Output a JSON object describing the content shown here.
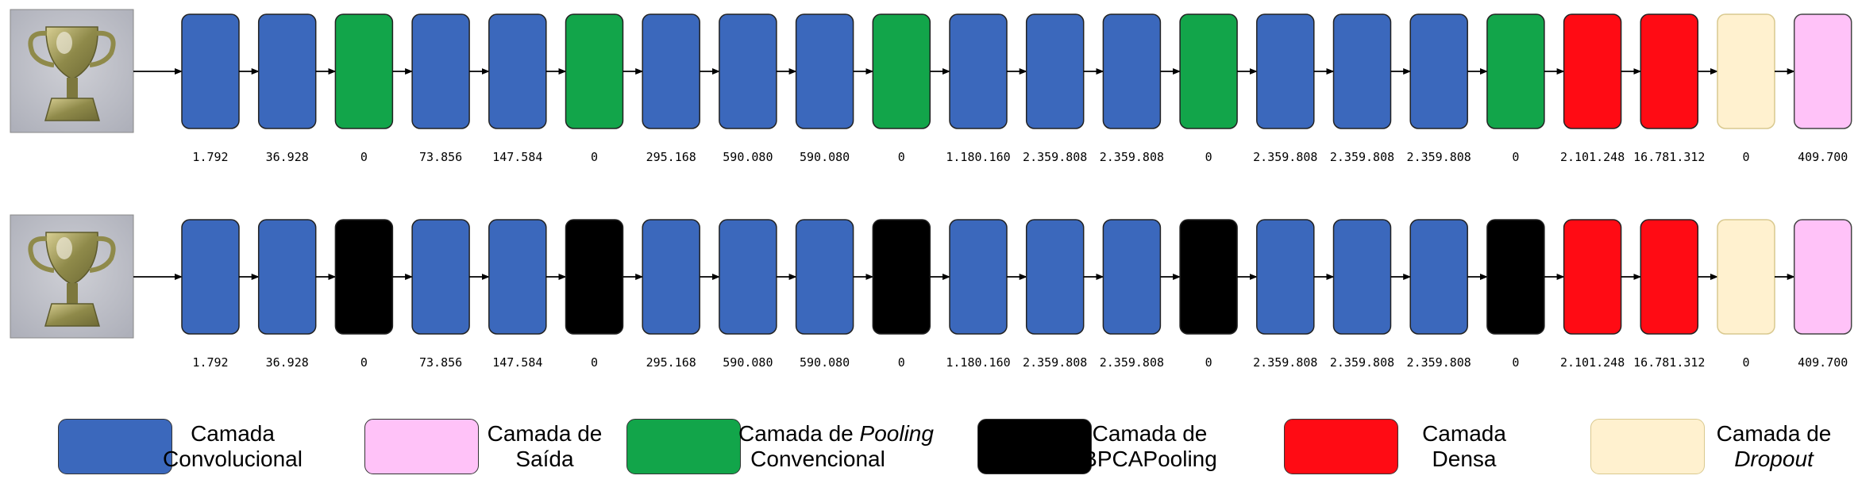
{
  "colors": {
    "conv": "#3B68BC",
    "pool_conv": "#12A54A",
    "pool_bpca": "#000000",
    "dense": "#FF0B14",
    "dropout": "#FFF1CF",
    "output": "#FFC2F8"
  },
  "rows": [
    {
      "image_icon": "trophy-icon",
      "layers": [
        "conv",
        "conv",
        "pool_conv",
        "conv",
        "conv",
        "pool_conv",
        "conv",
        "conv",
        "conv",
        "pool_conv",
        "conv",
        "conv",
        "conv",
        "pool_conv",
        "conv",
        "conv",
        "conv",
        "pool_conv",
        "dense",
        "dense",
        "dropout",
        "output"
      ],
      "params": [
        "1.792",
        "36.928",
        "0",
        "73.856",
        "147.584",
        "0",
        "295.168",
        "590.080",
        "590.080",
        "0",
        "1.180.160",
        "2.359.808",
        "2.359.808",
        "0",
        "2.359.808",
        "2.359.808",
        "2.359.808",
        "0",
        "2.101.248",
        "16.781.312",
        "0",
        "409.700"
      ]
    },
    {
      "image_icon": "trophy-icon",
      "layers": [
        "conv",
        "conv",
        "pool_bpca",
        "conv",
        "conv",
        "pool_bpca",
        "conv",
        "conv",
        "conv",
        "pool_bpca",
        "conv",
        "conv",
        "conv",
        "pool_bpca",
        "conv",
        "conv",
        "conv",
        "pool_bpca",
        "dense",
        "dense",
        "dropout",
        "output"
      ],
      "params": [
        "1.792",
        "36.928",
        "0",
        "73.856",
        "147.584",
        "0",
        "295.168",
        "590.080",
        "590.080",
        "0",
        "1.180.160",
        "2.359.808",
        "2.359.808",
        "0",
        "2.359.808",
        "2.359.808",
        "2.359.808",
        "0",
        "2.101.248",
        "16.781.312",
        "0",
        "409.700"
      ]
    }
  ],
  "legend": [
    {
      "type": "conv",
      "line1": "Camada",
      "line2": "Convolucional"
    },
    {
      "type": "output",
      "line1": "Camada de",
      "line2": "Saída"
    },
    {
      "type": "pool_conv",
      "line1_prefix": "Camada de ",
      "line1_italic": "Pooling",
      "line2": "Convencional"
    },
    {
      "type": "pool_bpca",
      "line1": "Camada de",
      "line2": "BPCAPooling"
    },
    {
      "type": "dense",
      "line1": "Camada",
      "line2": "Densa"
    },
    {
      "type": "dropout",
      "line1": "Camada de",
      "line2_italic": "Dropout"
    }
  ]
}
